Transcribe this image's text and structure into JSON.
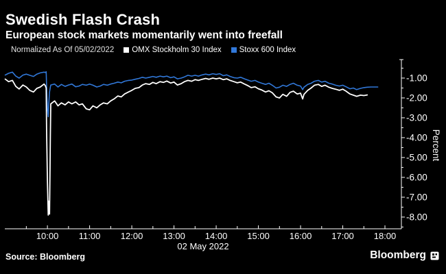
{
  "header": {
    "title": "Swedish Flash Crash",
    "subtitle": "European stock markets momentarily went into freefall"
  },
  "legend": {
    "note": "Normalized As Of 05/02/2022",
    "series": [
      {
        "label": "OMX Stockholm 30 Index",
        "color": "#ffffff"
      },
      {
        "label": "Stoxx 600 Index",
        "color": "#3178d9"
      }
    ]
  },
  "footer": {
    "source": "Source: Bloomberg",
    "brand": "Bloomberg",
    "brand_logo": "bloomberg-logo-icon"
  },
  "colors": {
    "background": "#000000",
    "axis": "#ffffff",
    "text": "#ffffff",
    "omx_line": "#ffffff",
    "stoxx_line": "#3178d9"
  },
  "chart_data": {
    "type": "line",
    "title": "Swedish Flash Crash",
    "subtitle": "European stock markets momentarily went into freefall",
    "xlabel": "02 May 2022",
    "ylabel": "Percent",
    "x_unit": "hour of day (24h clock), 02 May 2022",
    "y_unit": "percent change, normalized as of 05/02/2022",
    "grid": false,
    "legend_position": "top",
    "y_axis_side": "right",
    "xlim": [
      8.99,
      18.39
    ],
    "ylim": [
      -8.59,
      -0.07
    ],
    "x_ticks": [
      10,
      11,
      12,
      13,
      14,
      15,
      16,
      17,
      18
    ],
    "x_tick_labels": [
      "10:00",
      "11:00",
      "12:00",
      "13:00",
      "14:00",
      "15:00",
      "16:00",
      "17:00",
      "18:00"
    ],
    "x_minor_ticks": [
      9.5,
      10.5,
      11.5,
      12.5,
      13.5,
      14.5,
      15.5,
      16.5,
      17.5
    ],
    "y_ticks": [
      -1,
      -2,
      -3,
      -4,
      -5,
      -6,
      -7,
      -8
    ],
    "y_tick_labels": [
      "-1.00",
      "-2.00",
      "-3.00",
      "-4.00",
      "-5.00",
      "-6.00",
      "-7.00",
      "-8.00"
    ],
    "y_minor_ticks": [
      -0.5,
      -1.5,
      -2.5,
      -3.5,
      -4.5,
      -5.5,
      -6.5,
      -7.5,
      -8.5
    ],
    "annotations": [
      "flash crash low near -7.9% just before 10:00"
    ],
    "series": [
      {
        "name": "OMX Stockholm 30 Index",
        "color": "#ffffff",
        "width": 1.8,
        "x": [
          9.0,
          9.08,
          9.17,
          9.25,
          9.33,
          9.42,
          9.5,
          9.58,
          9.67,
          9.75,
          9.83,
          9.92,
          9.95,
          9.97,
          9.98,
          10.0,
          10.02,
          10.03,
          10.05,
          10.07,
          10.08,
          10.17,
          10.25,
          10.33,
          10.42,
          10.5,
          10.58,
          10.67,
          10.75,
          10.83,
          10.92,
          11.0,
          11.08,
          11.17,
          11.25,
          11.33,
          11.42,
          11.5,
          11.58,
          11.67,
          11.75,
          11.83,
          11.92,
          12.0,
          12.08,
          12.17,
          12.25,
          12.33,
          12.42,
          12.5,
          12.58,
          12.67,
          12.75,
          12.83,
          12.92,
          13.0,
          13.08,
          13.17,
          13.25,
          13.33,
          13.42,
          13.5,
          13.58,
          13.67,
          13.75,
          13.83,
          13.92,
          14.0,
          14.08,
          14.17,
          14.25,
          14.33,
          14.42,
          14.5,
          14.58,
          14.67,
          14.75,
          14.83,
          14.92,
          15.0,
          15.08,
          15.17,
          15.25,
          15.33,
          15.42,
          15.5,
          15.58,
          15.67,
          15.75,
          15.83,
          15.92,
          16.0,
          16.05,
          16.08,
          16.17,
          16.25,
          16.33,
          16.42,
          16.5,
          16.58,
          16.67,
          16.75,
          16.83,
          16.92,
          17.0,
          17.08,
          17.17,
          17.25,
          17.33,
          17.42,
          17.5,
          17.58
        ],
        "y": [
          -1.05,
          -1.18,
          -1.12,
          -1.42,
          -1.55,
          -1.35,
          -1.45,
          -1.62,
          -1.7,
          -1.52,
          -1.45,
          -1.3,
          -1.38,
          -1.5,
          -3.6,
          -6.2,
          -7.9,
          -7.2,
          -7.85,
          -3.9,
          -2.3,
          -2.15,
          -2.4,
          -2.25,
          -2.35,
          -2.2,
          -2.3,
          -2.2,
          -2.35,
          -2.3,
          -2.55,
          -2.6,
          -2.4,
          -2.5,
          -2.35,
          -2.25,
          -2.3,
          -2.15,
          -2.05,
          -1.9,
          -1.95,
          -1.8,
          -1.7,
          -1.62,
          -1.52,
          -1.48,
          -1.35,
          -1.28,
          -1.32,
          -1.22,
          -1.28,
          -1.18,
          -1.22,
          -1.15,
          -1.25,
          -1.2,
          -1.35,
          -1.28,
          -1.18,
          -1.12,
          -1.16,
          -1.08,
          -1.12,
          -1.06,
          -1.02,
          -1.06,
          -1.0,
          -1.04,
          -1.0,
          -1.08,
          -1.04,
          -1.12,
          -1.18,
          -1.24,
          -1.2,
          -1.3,
          -1.38,
          -1.48,
          -1.44,
          -1.54,
          -1.6,
          -1.7,
          -1.64,
          -1.74,
          -1.95,
          -2.0,
          -1.82,
          -1.92,
          -1.72,
          -1.66,
          -1.8,
          -1.76,
          -2.05,
          -1.82,
          -1.62,
          -1.5,
          -1.36,
          -1.32,
          -1.42,
          -1.36,
          -1.46,
          -1.52,
          -1.56,
          -1.62,
          -1.56,
          -1.66,
          -1.8,
          -1.86,
          -1.92,
          -1.86,
          -1.88,
          -1.85
        ]
      },
      {
        "name": "Stoxx 600 Index",
        "color": "#3178d9",
        "width": 1.6,
        "x": [
          9.0,
          9.08,
          9.17,
          9.25,
          9.33,
          9.42,
          9.5,
          9.58,
          9.67,
          9.75,
          9.83,
          9.92,
          9.95,
          9.97,
          9.98,
          10.0,
          10.02,
          10.03,
          10.05,
          10.07,
          10.08,
          10.17,
          10.25,
          10.33,
          10.42,
          10.5,
          10.58,
          10.67,
          10.75,
          10.83,
          10.92,
          11.0,
          11.08,
          11.17,
          11.25,
          11.33,
          11.42,
          11.5,
          11.58,
          11.67,
          11.75,
          11.83,
          11.92,
          12.0,
          12.08,
          12.17,
          12.25,
          12.33,
          12.42,
          12.5,
          12.58,
          12.67,
          12.75,
          12.83,
          12.92,
          13.0,
          13.08,
          13.17,
          13.25,
          13.33,
          13.42,
          13.5,
          13.58,
          13.67,
          13.75,
          13.83,
          13.92,
          14.0,
          14.08,
          14.17,
          14.25,
          14.33,
          14.42,
          14.5,
          14.58,
          14.67,
          14.75,
          14.83,
          14.92,
          15.0,
          15.08,
          15.17,
          15.25,
          15.33,
          15.42,
          15.5,
          15.58,
          15.67,
          15.75,
          15.83,
          15.92,
          16.0,
          16.05,
          16.08,
          16.17,
          16.25,
          16.33,
          16.42,
          16.5,
          16.58,
          16.67,
          16.75,
          16.83,
          16.92,
          17.0,
          17.08,
          17.17,
          17.25,
          17.33,
          17.42,
          17.5,
          17.58,
          17.67,
          17.75,
          17.83
        ],
        "y": [
          -0.85,
          -0.76,
          -0.7,
          -0.9,
          -1.0,
          -0.85,
          -0.8,
          -0.86,
          -0.92,
          -0.8,
          -0.74,
          -0.7,
          -0.72,
          -0.68,
          -1.4,
          -2.55,
          -2.95,
          -2.4,
          -1.7,
          -1.45,
          -1.35,
          -1.3,
          -1.45,
          -1.32,
          -1.42,
          -1.35,
          -1.3,
          -1.44,
          -1.4,
          -1.32,
          -1.36,
          -1.3,
          -1.36,
          -1.45,
          -1.4,
          -1.32,
          -1.36,
          -1.3,
          -1.26,
          -1.2,
          -1.24,
          -1.16,
          -1.12,
          -1.1,
          -1.06,
          -1.02,
          -0.96,
          -1.0,
          -0.96,
          -0.92,
          -0.96,
          -0.9,
          -0.94,
          -0.9,
          -0.98,
          -0.94,
          -1.04,
          -1.0,
          -0.94,
          -0.86,
          -0.9,
          -0.86,
          -0.9,
          -0.84,
          -0.8,
          -0.84,
          -0.78,
          -0.82,
          -0.78,
          -0.88,
          -0.84,
          -0.92,
          -0.98,
          -1.0,
          -0.96,
          -1.04,
          -1.1,
          -1.16,
          -1.12,
          -1.2,
          -1.26,
          -1.32,
          -1.26,
          -1.36,
          -1.5,
          -1.46,
          -1.36,
          -1.42,
          -1.32,
          -1.26,
          -1.36,
          -1.4,
          -1.58,
          -1.46,
          -1.32,
          -1.26,
          -1.16,
          -1.12,
          -1.2,
          -1.16,
          -1.26,
          -1.3,
          -1.36,
          -1.4,
          -1.36,
          -1.44,
          -1.54,
          -1.5,
          -1.58,
          -1.52,
          -1.48,
          -1.46,
          -1.45,
          -1.45,
          -1.45
        ]
      }
    ]
  }
}
